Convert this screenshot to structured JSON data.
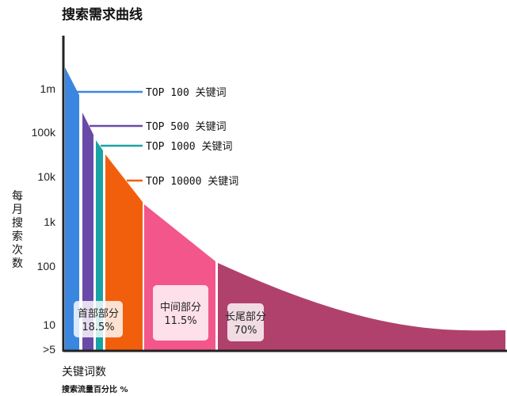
{
  "chart_data": {
    "type": "area",
    "title": "搜索需求曲线",
    "ylabel": "每月搜索次数",
    "xlabel": "关键词数",
    "xlabel2": "搜索流量百分比 %",
    "y_scale": "log",
    "y_ticks": [
      "1m",
      "100k",
      "10k",
      "1k",
      "100",
      "10",
      ">5"
    ],
    "grid": false,
    "keyword_groups": [
      {
        "label": "TOP 100 关键词",
        "color": "#3a86e0"
      },
      {
        "label": "TOP 500 关键词",
        "color": "#6a4aa8"
      },
      {
        "label": "TOP 1000 关键词",
        "color": "#1aa3a3"
      },
      {
        "label": "TOP 10000 关键词",
        "color": "#f25f0c"
      }
    ],
    "sections": [
      {
        "name": "首部部分",
        "percent": "18.5%",
        "value": 18.5
      },
      {
        "name": "中间部分",
        "percent": "11.5%",
        "value": 11.5,
        "color": "#f2568a"
      },
      {
        "name": "长尾部分",
        "percent": "70%",
        "value": 70,
        "color": "#b0416c"
      }
    ]
  }
}
